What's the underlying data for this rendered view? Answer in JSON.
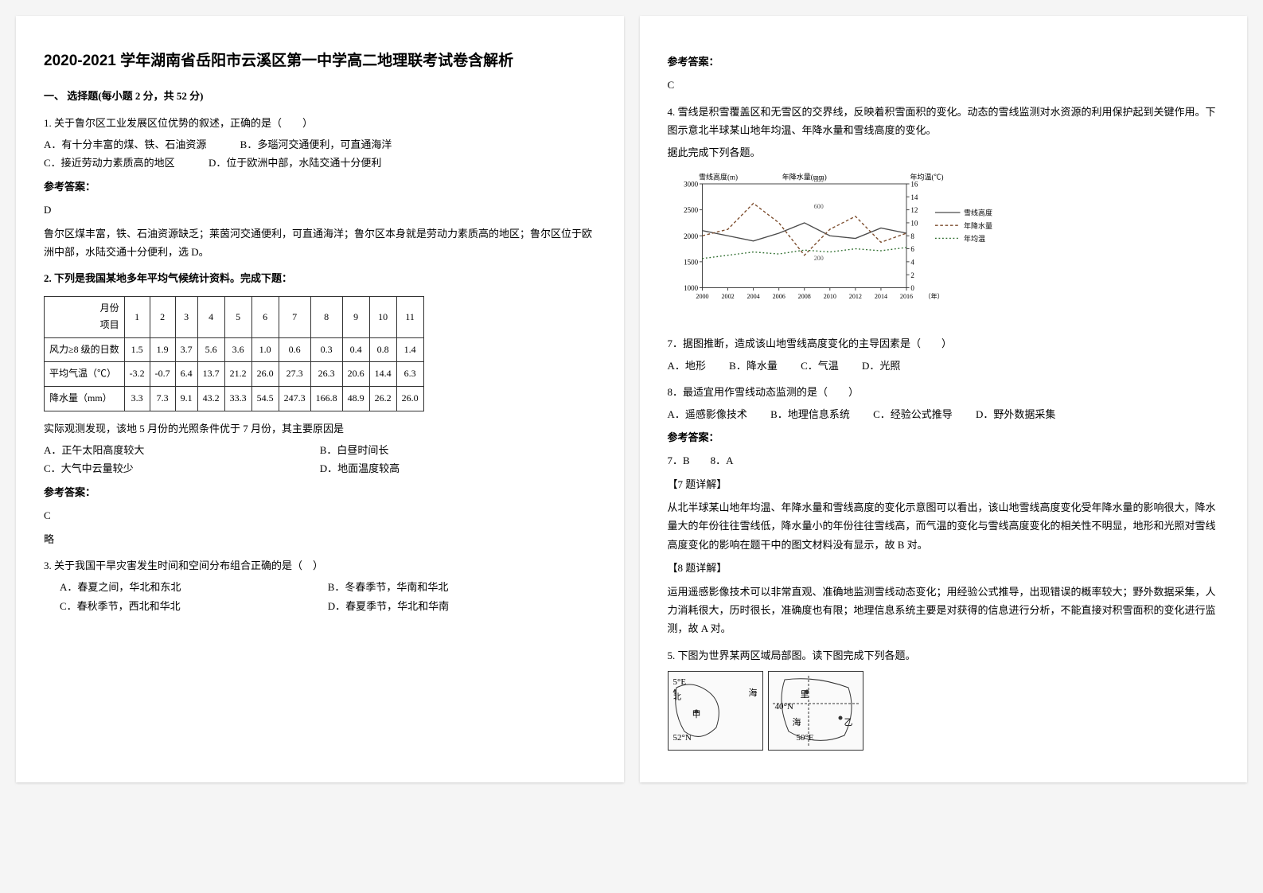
{
  "title": "2020-2021 学年湖南省岳阳市云溪区第一中学高二地理联考试卷含解析",
  "section1": "一、 选择题(每小题 2 分，共 52 分)",
  "q1": {
    "stem": "1. 关于鲁尔区工业发展区位优势的叙述，正确的是（　　）",
    "optA": "A．有十分丰富的煤、铁、石油资源",
    "optB": "B．多瑙河交通便利，可直通海洋",
    "optC": "C．接近劳动力素质高的地区",
    "optD": "D．位于欧洲中部，水陆交通十分便利",
    "ansLabel": "参考答案：",
    "ans": "D",
    "expl": "鲁尔区煤丰富，铁、石油资源缺乏；莱茵河交通便利，可直通海洋；鲁尔区本身就是劳动力素质高的地区；鲁尔区位于欧洲中部，水陆交通十分便利，选 D。"
  },
  "q2": {
    "stem": "2. 下列是我国某地多年平均气候统计资料。完成下题：",
    "table": {
      "header": [
        "月份\\n项目",
        "1",
        "2",
        "3",
        "4",
        "5",
        "6",
        "7",
        "8",
        "9",
        "10",
        "11"
      ],
      "rows": [
        [
          "风力≥8 级的日数",
          "1.5",
          "1.9",
          "3.7",
          "5.6",
          "3.6",
          "1.0",
          "0.6",
          "0.3",
          "0.4",
          "0.8",
          "1.4"
        ],
        [
          "平均气温（℃）",
          "-3.2",
          "-0.7",
          "6.4",
          "13.7",
          "21.2",
          "26.0",
          "27.3",
          "26.3",
          "20.6",
          "14.4",
          "6.3"
        ],
        [
          "降水量（mm）",
          "3.3",
          "7.3",
          "9.1",
          "43.2",
          "33.3",
          "54.5",
          "247.3",
          "166.8",
          "48.9",
          "26.2",
          "26.0"
        ]
      ]
    },
    "sub": "实际观测发现，该地 5 月份的光照条件优于 7 月份，其主要原因是",
    "optA": "A．正午太阳高度较大",
    "optB": "B．白昼时间长",
    "optC": "C．大气中云量较少",
    "optD": "D．地面温度较高",
    "ansLabel": "参考答案：",
    "ans": "C",
    "expl": "略"
  },
  "q3": {
    "stem": "3. 关于我国干旱灾害发生时间和空间分布组合正确的是（　）",
    "optA": "A．春夏之间，华北和东北",
    "optB": "B．冬春季节，华南和华北",
    "optC": "C．春秋季节，西北和华北",
    "optD": "D．春夏季节，华北和华南",
    "ansLabel": "参考答案：",
    "ans": "C"
  },
  "q4": {
    "stem": "4. 雪线是积雪覆盖区和无雪区的交界线，反映着积雪面积的变化。动态的雪线监测对水资源的利用保护起到关键作用。下图示意北半球某山地年均温、年降水量和雪线高度的变化。",
    "sub": "据此完成下列各题。",
    "chart": {
      "title_y1": "雪线高度(m)",
      "title_y2": "年降水量(mm)",
      "title_y3": "年均温(℃)",
      "x_label": "（年）",
      "x_ticks": [
        2000,
        2002,
        2004,
        2006,
        2008,
        2010,
        2012,
        2014,
        2016
      ],
      "y1_lim": [
        1000,
        3000
      ],
      "y1_ticks": [
        1000,
        1500,
        2000,
        2500,
        3000
      ],
      "y2_lim": [
        0,
        800
      ],
      "y2_ticks": [
        200,
        600,
        800
      ],
      "y3_lim": [
        0,
        16
      ],
      "y3_ticks": [
        0,
        2,
        4,
        6,
        8,
        10,
        12,
        14,
        16
      ],
      "legend": [
        "雪线高度",
        "年降水量",
        "年均温"
      ],
      "colors": {
        "snowline": "#4a4a4a",
        "precip": "#7a4a2a",
        "temp": "#2a6a2a",
        "grid": "#cccccc",
        "bg": "#ffffff"
      },
      "snowline": [
        2100,
        2000,
        1900,
        2050,
        2250,
        2000,
        1950,
        2150,
        2050
      ],
      "precip": [
        400,
        450,
        650,
        500,
        250,
        450,
        550,
        350,
        420
      ],
      "temp": [
        4.5,
        5.0,
        5.5,
        5.2,
        5.8,
        5.5,
        6.0,
        5.7,
        6.2
      ]
    },
    "q7": "7．据图推断，造成该山地雪线高度变化的主导因素是（　　）",
    "q7opts": {
      "A": "A．地形",
      "B": "B．降水量",
      "C": "C．气温",
      "D": "D．光照"
    },
    "q8": "8．最适宜用作雪线动态监测的是（　　）",
    "q8opts": {
      "A": "A．遥感影像技术",
      "B": "B．地理信息系统",
      "C": "C．经验公式推导",
      "D": "D．野外数据采集"
    },
    "ansLabel": "参考答案：",
    "ans": "7．B　　8．A",
    "expl7h": "【7 题详解】",
    "expl7": "从北半球某山地年均温、年降水量和雪线高度的变化示意图可以看出，该山地雪线高度变化受年降水量的影响很大，降水量大的年份往往雪线低，降水量小的年份往往雪线高，而气温的变化与雪线高度变化的相关性不明显，地形和光照对雪线高度变化的影响在题干中的图文材料没有显示，故 B 对。",
    "expl8h": "【8 题详解】",
    "expl8": "运用遥感影像技术可以非常直观、准确地监测雪线动态变化；用经验公式推导，出现错误的概率较大；野外数据采集，人力消耗很大，历时很长，准确度也有限；地理信息系统主要是对获得的信息进行分析，不能直接对积雪面积的变化进行监测，故 A 对。"
  },
  "q5": {
    "stem": "5. 下图为世界某两区域局部图。读下图完成下列各题。",
    "map1": {
      "lon": "5°E",
      "lat": "52°N",
      "label": "甲",
      "sea": "海"
    },
    "map2": {
      "lon": "50°E",
      "lat": "40°N",
      "label": "乙",
      "sea": "海",
      "city": "里"
    }
  }
}
